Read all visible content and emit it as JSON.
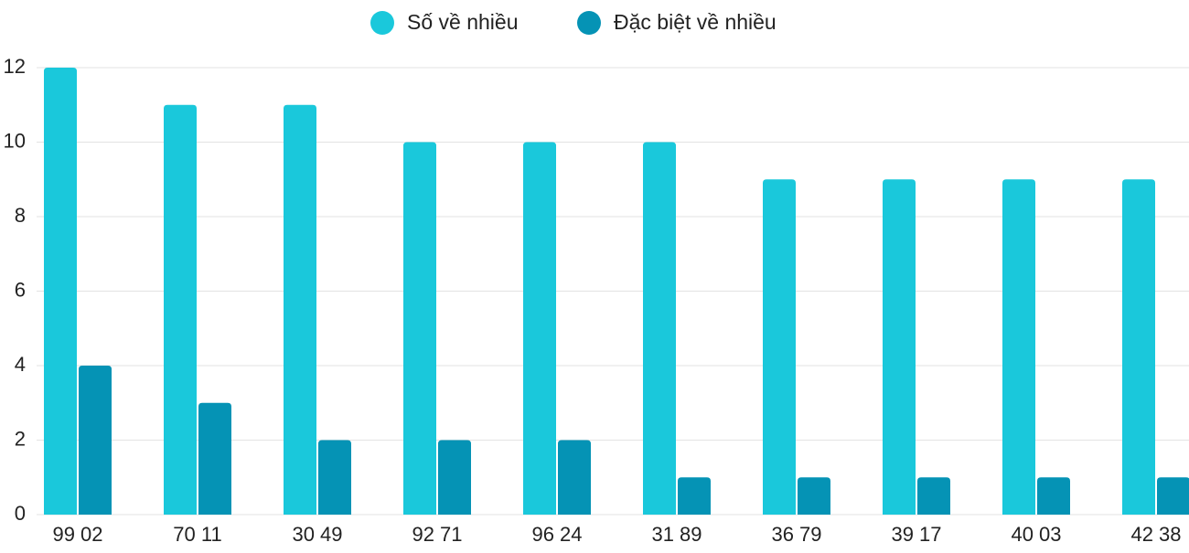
{
  "chart_data": {
    "type": "bar",
    "categories": [
      "99 02",
      "70 11",
      "30 49",
      "92 71",
      "96 24",
      "31 89",
      "36 79",
      "39 17",
      "40 03",
      "42 38"
    ],
    "series": [
      {
        "name": "Số về nhiều",
        "color": "#1ac8db",
        "values": [
          12,
          11,
          11,
          10,
          10,
          10,
          9,
          9,
          9,
          9
        ]
      },
      {
        "name": "Đặc biệt về nhiều",
        "color": "#0593b5",
        "values": [
          4,
          3,
          2,
          2,
          2,
          1,
          1,
          1,
          1,
          1
        ]
      }
    ],
    "ylim": [
      0,
      12
    ],
    "yticks": [
      0,
      2,
      4,
      6,
      8,
      10,
      12
    ],
    "grid": true,
    "legend": "top"
  }
}
